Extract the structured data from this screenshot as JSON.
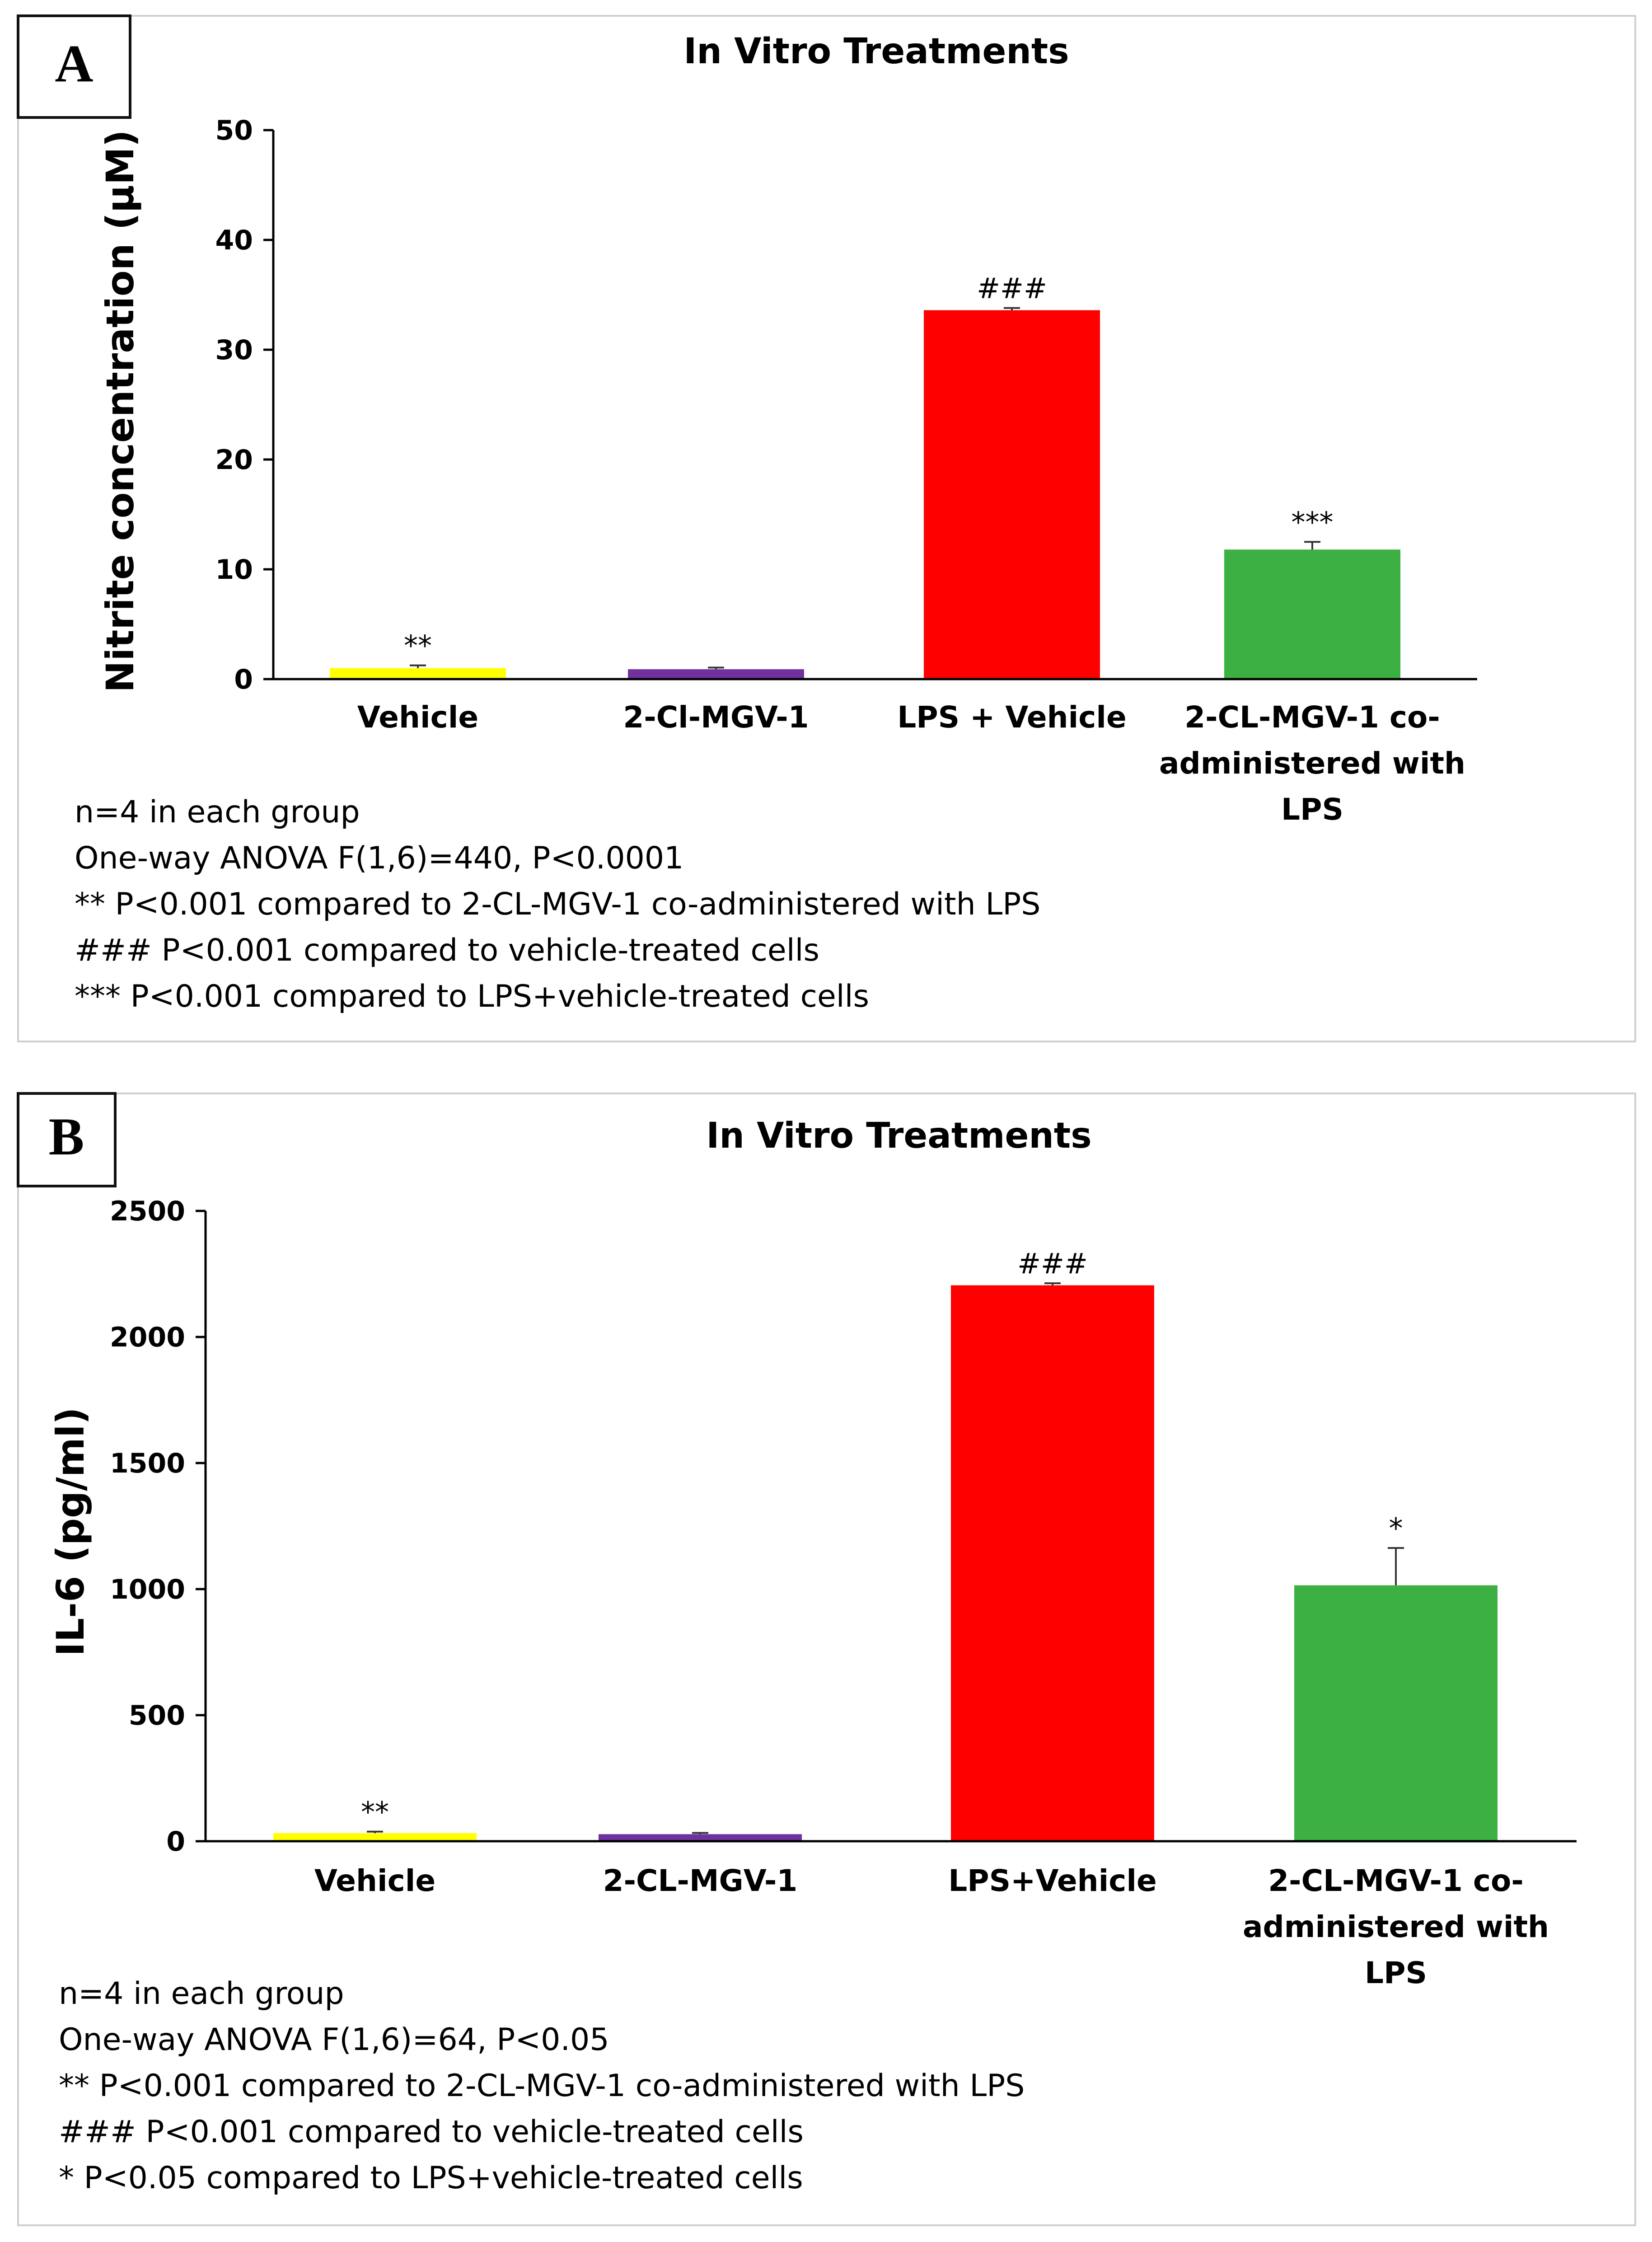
{
  "chart_data": [
    {
      "type": "bar",
      "panel": "A",
      "title": "In Vitro Treatments",
      "ylabel": "Nitrite concentration (μM)",
      "xlabel": "",
      "ylim": [
        0,
        50
      ],
      "yticks": [
        "0",
        "10",
        "20",
        "30",
        "40",
        "50"
      ],
      "categories": [
        [
          "Vehicle"
        ],
        [
          "2-Cl-MGV-1"
        ],
        [
          "LPS + Vehicle"
        ],
        [
          "2-CL-MGV-1 co-",
          "administered with",
          "LPS"
        ]
      ],
      "values": [
        1.0,
        0.9,
        33.6,
        11.8
      ],
      "errors": [
        0.25,
        0.15,
        0.2,
        0.7
      ],
      "colors": [
        "#ffff00",
        "#7030a0",
        "#ff0000",
        "#3cb043"
      ],
      "significance": [
        "**",
        "",
        "###",
        "***"
      ],
      "notes": [
        "n=4 in each group",
        "One-way ANOVA F(1,6)=440, P<0.0001",
        "** P<0.001 compared to 2-CL-MGV-1 co-administered with LPS",
        "### P<0.001 compared to vehicle-treated cells",
        "*** P<0.001 compared to LPS+vehicle-treated cells"
      ]
    },
    {
      "type": "bar",
      "panel": "B",
      "title": "In Vitro Treatments",
      "ylabel": "IL-6 (pg/ml)",
      "xlabel": "",
      "ylim": [
        0,
        2500
      ],
      "yticks": [
        "0",
        "500",
        "1000",
        "1500",
        "2000",
        "2500"
      ],
      "categories": [
        [
          "Vehicle"
        ],
        [
          "2-CL-MGV-1"
        ],
        [
          "LPS+Vehicle"
        ],
        [
          "2-CL-MGV-1 co-",
          "administered with",
          "LPS"
        ]
      ],
      "values": [
        32,
        28,
        2205,
        1015
      ],
      "errors": [
        6,
        5,
        8,
        148
      ],
      "colors": [
        "#ffff00",
        "#7030a0",
        "#ff0000",
        "#3cb043"
      ],
      "significance": [
        "**",
        "",
        "###",
        "*"
      ],
      "notes": [
        "n=4 in each group",
        "One-way ANOVA F(1,6)=64, P<0.05",
        "** P<0.001 compared to 2-CL-MGV-1 co-administered with LPS",
        "### P<0.001 compared to vehicle-treated cells",
        "* P<0.05 compared to LPS+vehicle-treated cells"
      ]
    }
  ]
}
